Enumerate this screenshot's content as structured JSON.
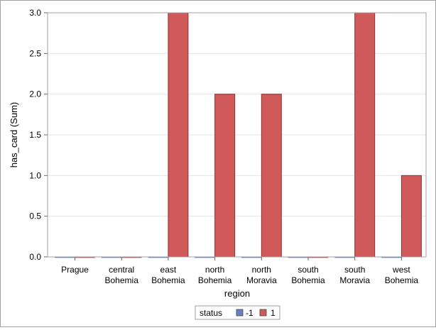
{
  "chart_data": {
    "type": "bar",
    "xlabel": "region",
    "ylabel": "has_card (Sum)",
    "ylim": [
      0,
      3
    ],
    "yticks": [
      "0.0",
      "0.5",
      "1.0",
      "1.5",
      "2.0",
      "2.5",
      "3.0"
    ],
    "ytick_values": [
      0,
      0.5,
      1,
      1.5,
      2,
      2.5,
      3
    ],
    "grid": true,
    "categories": [
      [
        "Prague"
      ],
      [
        "central",
        "Bohemia"
      ],
      [
        "east",
        "Bohemia"
      ],
      [
        "north",
        "Bohemia"
      ],
      [
        "north",
        "Moravia"
      ],
      [
        "south",
        "Bohemia"
      ],
      [
        "south",
        "Moravia"
      ],
      [
        "west",
        "Bohemia"
      ]
    ],
    "legend": {
      "title": "status",
      "position": "bottom"
    },
    "series": [
      {
        "name": "-1",
        "color": "#6b7fc4",
        "values": [
          0,
          0,
          0,
          0,
          0,
          0,
          0,
          0
        ]
      },
      {
        "name": "1",
        "color": "#d05a5a",
        "values": [
          0,
          0,
          3,
          2,
          2,
          0,
          3,
          1
        ]
      }
    ]
  }
}
